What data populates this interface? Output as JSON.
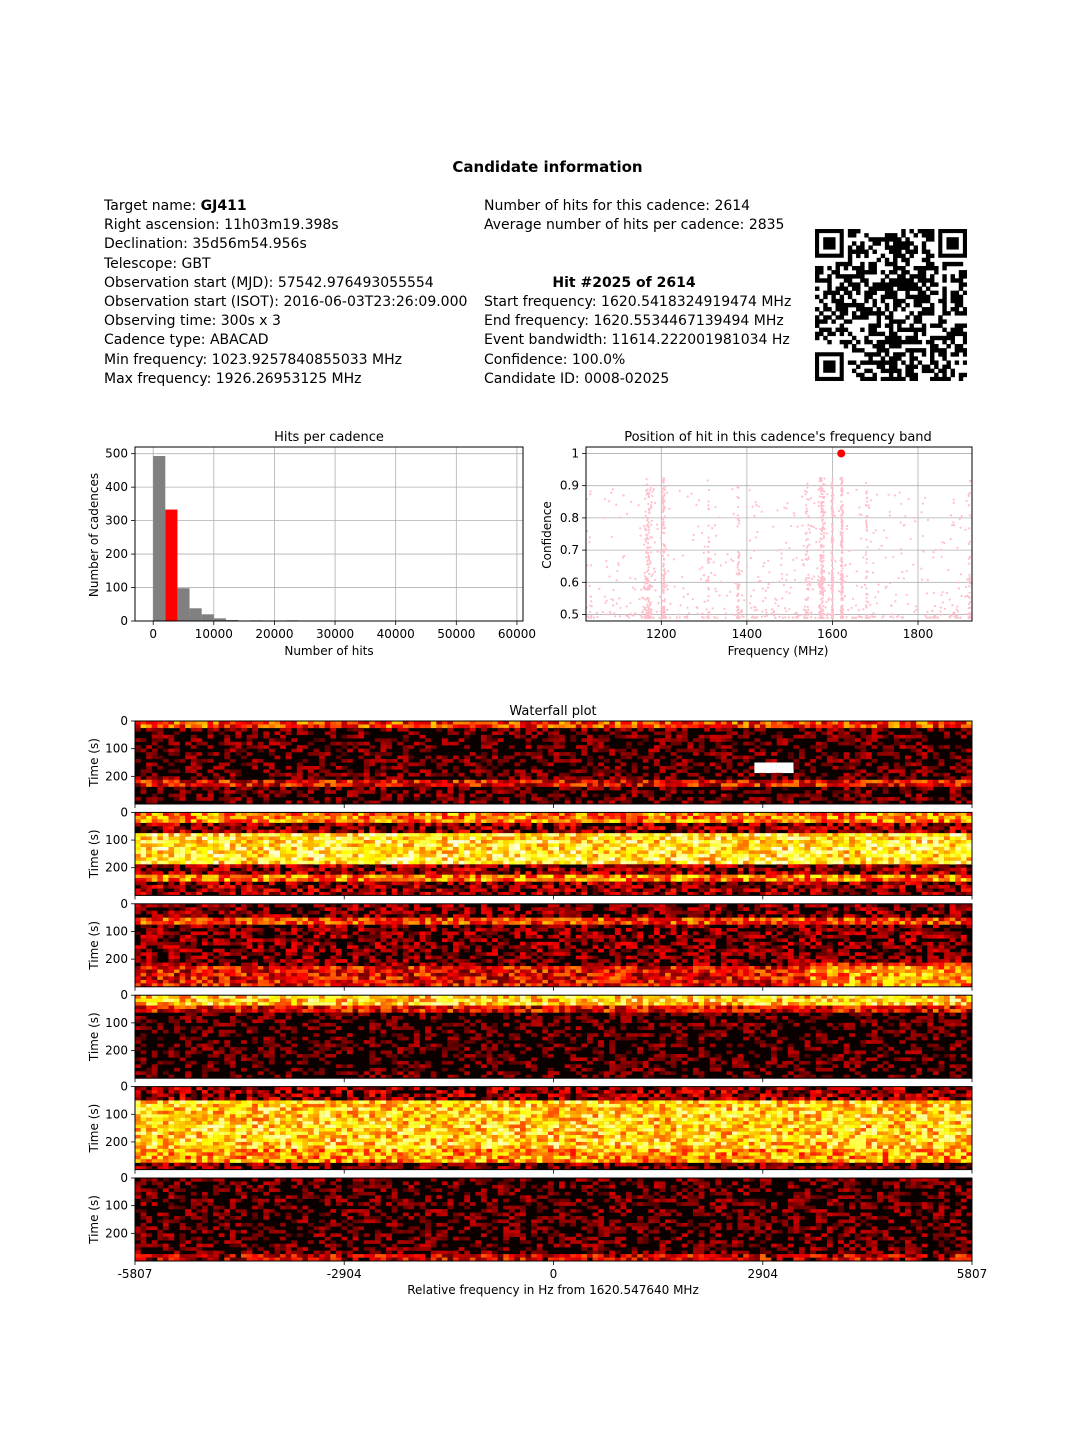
{
  "page_title": "Candidate information",
  "info_left": [
    {
      "label": "Target name: ",
      "value": "GJ411",
      "bold": true
    },
    {
      "label": "Right ascension: ",
      "value": "11h03m19.398s"
    },
    {
      "label": "Declination: ",
      "value": "35d56m54.956s"
    },
    {
      "label": "Telescope: ",
      "value": "GBT"
    },
    {
      "label": "Observation start (MJD): ",
      "value": "57542.976493055554"
    },
    {
      "label": "Observation start (ISOT): ",
      "value": "2016-06-03T23:26:09.000"
    },
    {
      "label": "Observing time: ",
      "value": "300s x 3"
    },
    {
      "label": "Cadence type: ",
      "value": "ABACAD"
    },
    {
      "label": "Min frequency: ",
      "value": "1023.9257840855033 MHz"
    },
    {
      "label": "Max frequency: ",
      "value": "1926.26953125 MHz"
    }
  ],
  "info_right_top": [
    {
      "label": "Number of hits for this cadence: ",
      "value": "2614"
    },
    {
      "label": "Average number of hits per cadence: ",
      "value": "2835"
    }
  ],
  "hit_heading": "Hit #2025 of 2614",
  "info_right_hit": [
    {
      "label": "Start frequency: ",
      "value": "1620.5418324919474 MHz"
    },
    {
      "label": "End frequency: ",
      "value": "1620.5534467139494 MHz"
    },
    {
      "label": "Event bandwidth: ",
      "value": "11614.222001981034 Hz"
    },
    {
      "label": "Confidence: ",
      "value": "100.0%"
    },
    {
      "label": "Candidate ID: ",
      "value": "0008-02025"
    }
  ],
  "qr_code": {
    "icon": "qr-code-icon"
  },
  "chart_data": [
    {
      "type": "bar",
      "title": "Hits per cadence",
      "xlabel": "Number of hits",
      "ylabel": "Number of cadences",
      "xlim": [
        -3000,
        61000
      ],
      "ylim": [
        0,
        520
      ],
      "xticks": [
        0,
        10000,
        20000,
        30000,
        40000,
        50000,
        60000
      ],
      "yticks": [
        0,
        100,
        200,
        300,
        400,
        500
      ],
      "grid": true,
      "bin_width": 2000,
      "bins": [
        {
          "x0": 0,
          "count": 493,
          "color": "#808080"
        },
        {
          "x0": 2000,
          "count": 333,
          "color": "#ff0000"
        },
        {
          "x0": 4000,
          "count": 98,
          "color": "#808080"
        },
        {
          "x0": 6000,
          "count": 38,
          "color": "#808080"
        },
        {
          "x0": 8000,
          "count": 20,
          "color": "#808080"
        },
        {
          "x0": 10000,
          "count": 8,
          "color": "#808080"
        },
        {
          "x0": 12000,
          "count": 3,
          "color": "#808080"
        },
        {
          "x0": 14000,
          "count": 1,
          "color": "#808080"
        },
        {
          "x0": 16000,
          "count": 2,
          "color": "#808080"
        },
        {
          "x0": 18000,
          "count": 1,
          "color": "#808080"
        },
        {
          "x0": 20000,
          "count": 1,
          "color": "#808080"
        },
        {
          "x0": 22000,
          "count": 2,
          "color": "#808080"
        },
        {
          "x0": 24000,
          "count": 1,
          "color": "#808080"
        }
      ]
    },
    {
      "type": "scatter",
      "title": "Position of hit in this cadence's frequency band",
      "xlabel": "Frequency (MHz)",
      "ylabel": "Confidence",
      "xlim": [
        1023.93,
        1926.27
      ],
      "ylim": [
        0.48,
        1.02
      ],
      "xticks": [
        1200,
        1400,
        1600,
        1800
      ],
      "yticks": [
        0.5,
        0.6,
        0.7,
        0.8,
        0.9,
        1.0
      ],
      "grid": true,
      "background_color": "#ffc0cb",
      "clusters": [
        {
          "freq": 1170,
          "spread": 14,
          "count": 160
        },
        {
          "freq": 1205,
          "spread": 6,
          "count": 140
        },
        {
          "freq": 1310,
          "spread": 4,
          "count": 30
        },
        {
          "freq": 1380,
          "spread": 5,
          "count": 60
        },
        {
          "freq": 1540,
          "spread": 12,
          "count": 60
        },
        {
          "freq": 1575,
          "spread": 10,
          "count": 200
        },
        {
          "freq": 1600,
          "spread": 3,
          "count": 160
        },
        {
          "freq": 1622,
          "spread": 4,
          "count": 200
        },
        {
          "freq": 1680,
          "spread": 4,
          "count": 40
        },
        {
          "freq": 1920,
          "spread": 4,
          "count": 40
        }
      ],
      "background_point_count": 600,
      "highlight": {
        "freq": 1620.5476,
        "confidence": 1.0,
        "color": "#ff0000"
      }
    },
    {
      "type": "heatmap",
      "title": "Waterfall plot",
      "xlabel": "Relative frequency in Hz from 1620.547640 MHz",
      "ylabel": "Time (s)",
      "xlim": [
        -5807,
        5807
      ],
      "ylim": [
        0,
        300
      ],
      "xticks": [
        -5807,
        -2904,
        0,
        2904,
        5807
      ],
      "yticks": [
        0,
        100,
        200
      ],
      "colormap": "hot",
      "panel_count": 6
    }
  ]
}
